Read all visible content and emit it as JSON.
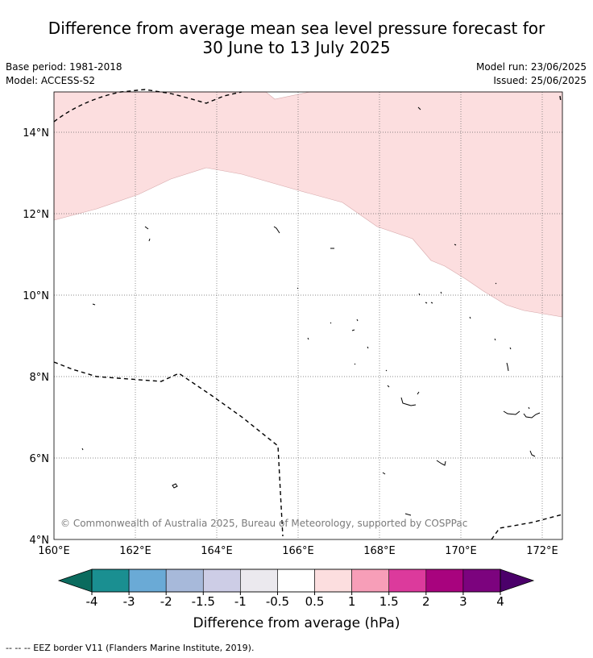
{
  "title": {
    "line1": "Difference from average mean sea level pressure forecast for",
    "line2": "30 June to 13 July 2025"
  },
  "meta": {
    "base_period": "Base period: 1981-2018",
    "model": "Model: ACCESS-S2",
    "model_run": "Model run: 23/06/2025",
    "issued": "Issued: 25/06/2025"
  },
  "map": {
    "lat_labels": [
      "14°N",
      "12°N",
      "10°N",
      "8°N",
      "6°N",
      "4°N"
    ],
    "lon_labels": [
      "160°E",
      "162°E",
      "164°E",
      "166°E",
      "168°E",
      "170°E",
      "172°E"
    ],
    "copyright": "© Commonwealth of Australia 2025, Bureau of Meteorology, supported by COSPPac",
    "anomaly_region_color": "#fcdedf",
    "anomaly_region_range": "0.5 to 1 hPa"
  },
  "colorbar": {
    "label": "Difference from average (hPa)",
    "ticks": [
      "-4",
      "-3",
      "-2",
      "-1.5",
      "-1",
      "-0.5",
      "0.5",
      "1",
      "1.5",
      "2",
      "3",
      "4"
    ],
    "colors": [
      "#1a8f91",
      "#6aaad6",
      "#a7b9da",
      "#cdcde6",
      "#ebe9ee",
      "#ffffff",
      "#fcdedf",
      "#f79eb8",
      "#dc3a9c",
      "#a8037e",
      "#7c037e"
    ],
    "low_extend_color": "#0b6b5e",
    "high_extend_color": "#4b006a"
  },
  "legend": {
    "eez_text": "--  --  -- EEZ border V11 (Flanders Marine Institute, 2019)."
  }
}
